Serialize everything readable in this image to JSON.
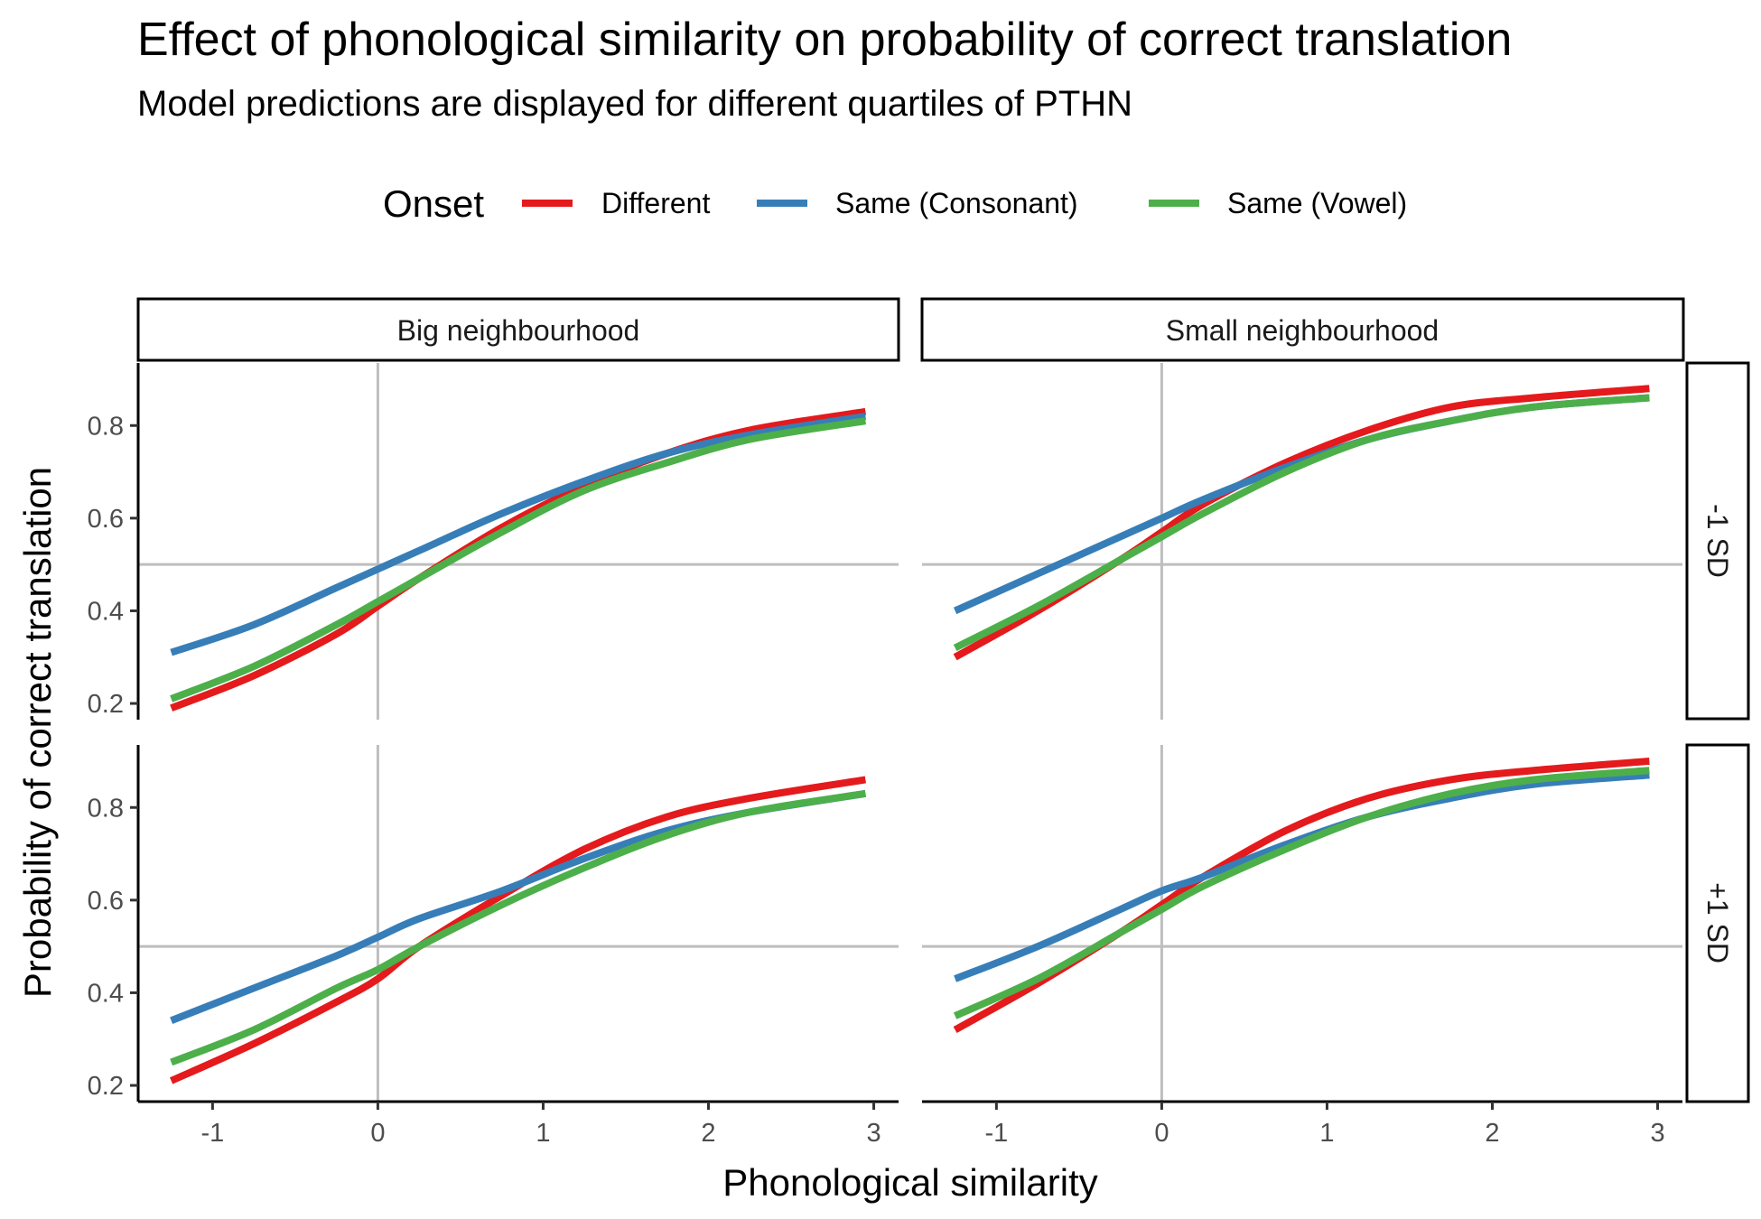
{
  "chart_data": {
    "type": "line",
    "title": "Effect of phonological similarity on probability of correct translation",
    "subtitle": "Model predictions are displayed for different quartiles of PTHN",
    "xlabel": "Phonological similarity",
    "ylabel": "Probability of correct translation",
    "xlim": [
      -1.45,
      3.15
    ],
    "ylim": [
      0.165,
      0.935
    ],
    "x_ticks": [
      "-1",
      "0",
      "1",
      "2",
      "3"
    ],
    "y_ticks": [
      "0.2",
      "0.4",
      "0.6",
      "0.8"
    ],
    "reference_lines": {
      "x": 0,
      "y": 0.5
    },
    "grid": false,
    "legend": {
      "title": "Onset",
      "position": "top",
      "entries": [
        {
          "label": "Different",
          "color": "#E41A1C"
        },
        {
          "label": "Same (Consonant)",
          "color": "#377EB8"
        },
        {
          "label": "Same (Vowel)",
          "color": "#4DAF4A"
        }
      ]
    },
    "facet_columns": [
      "Big neighbourhood",
      "Small neighbourhood"
    ],
    "facet_rows": [
      "-1 SD",
      "+1 SD"
    ],
    "x": [
      -1.25,
      -0.75,
      -0.25,
      0,
      0.25,
      0.75,
      1.25,
      1.75,
      2.25,
      2.95
    ],
    "panels": [
      {
        "column": "Big neighbourhood",
        "row": "-1 SD",
        "series": [
          {
            "name": "Different",
            "values": [
              0.19,
              0.26,
              0.35,
              0.41,
              0.47,
              0.58,
              0.67,
              0.74,
              0.79,
              0.83
            ]
          },
          {
            "name": "Same (Consonant)",
            "values": [
              0.31,
              0.37,
              0.45,
              0.49,
              0.53,
              0.61,
              0.68,
              0.74,
              0.78,
              0.82
            ]
          },
          {
            "name": "Same (Vowel)",
            "values": [
              0.21,
              0.28,
              0.37,
              0.42,
              0.47,
              0.57,
              0.66,
              0.72,
              0.77,
              0.81
            ]
          }
        ]
      },
      {
        "column": "Small neighbourhood",
        "row": "-1 SD",
        "series": [
          {
            "name": "Different",
            "values": [
              0.3,
              0.4,
              0.51,
              0.57,
              0.63,
              0.72,
              0.79,
              0.84,
              0.86,
              0.88
            ]
          },
          {
            "name": "Same (Consonant)",
            "values": [
              0.4,
              0.48,
              0.56,
              0.6,
              0.64,
              0.71,
              0.77,
              0.81,
              0.84,
              0.86
            ]
          },
          {
            "name": "Same (Vowel)",
            "values": [
              0.32,
              0.41,
              0.51,
              0.56,
              0.61,
              0.7,
              0.77,
              0.81,
              0.84,
              0.86
            ]
          }
        ]
      },
      {
        "column": "Big neighbourhood",
        "row": "+1 SD",
        "series": [
          {
            "name": "Different",
            "values": [
              0.21,
              0.29,
              0.38,
              0.43,
              0.5,
              0.61,
              0.71,
              0.78,
              0.82,
              0.86
            ]
          },
          {
            "name": "Same (Consonant)",
            "values": [
              0.34,
              0.41,
              0.48,
              0.52,
              0.56,
              0.62,
              0.69,
              0.75,
              0.79,
              0.83
            ]
          },
          {
            "name": "Same (Vowel)",
            "values": [
              0.25,
              0.32,
              0.41,
              0.45,
              0.5,
              0.59,
              0.67,
              0.74,
              0.79,
              0.83
            ]
          }
        ]
      },
      {
        "column": "Small neighbourhood",
        "row": "+1 SD",
        "series": [
          {
            "name": "Different",
            "values": [
              0.32,
              0.42,
              0.53,
              0.59,
              0.65,
              0.75,
              0.82,
              0.86,
              0.88,
              0.9
            ]
          },
          {
            "name": "Same (Consonant)",
            "values": [
              0.43,
              0.5,
              0.58,
              0.62,
              0.65,
              0.72,
              0.78,
              0.82,
              0.85,
              0.87
            ]
          },
          {
            "name": "Same (Vowel)",
            "values": [
              0.35,
              0.43,
              0.53,
              0.58,
              0.63,
              0.71,
              0.78,
              0.83,
              0.86,
              0.88
            ]
          }
        ]
      }
    ]
  }
}
